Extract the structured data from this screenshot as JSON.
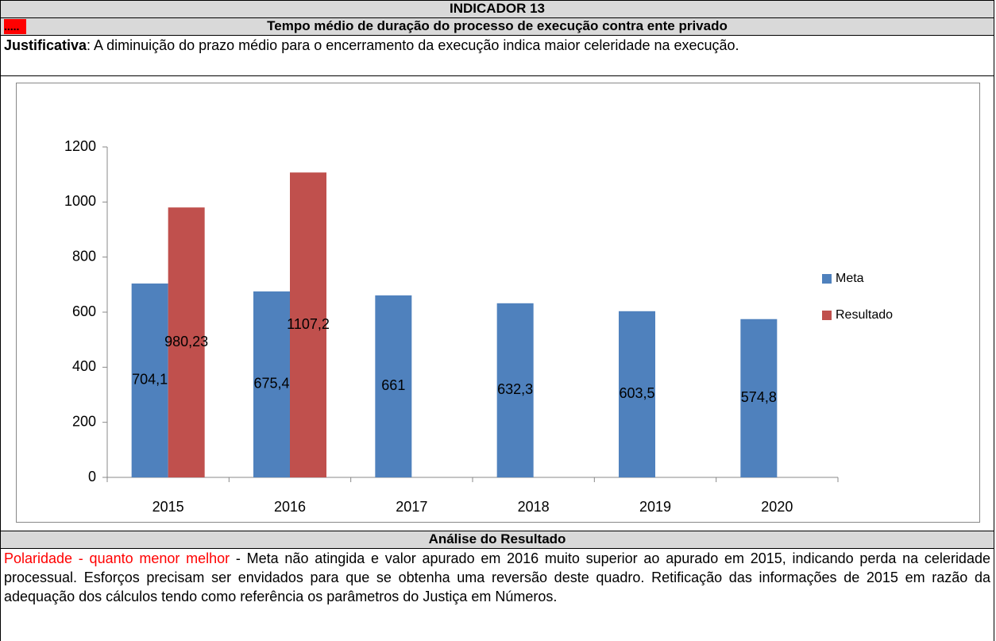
{
  "header": {
    "title": "INDICADOR 13",
    "marker": ".....",
    "subtitle": "Tempo médio de duração do processo de execução contra ente privado"
  },
  "justification": {
    "label": "Justificativa",
    "text": ": A diminuição do prazo médio para o encerramento da execução indica maior celeridade na execução."
  },
  "chart_data": {
    "type": "bar",
    "categories": [
      "2015",
      "2016",
      "2017",
      "2018",
      "2019",
      "2020"
    ],
    "series": [
      {
        "name": "Meta",
        "color": "#4f81bd",
        "values": [
          704.1,
          675.4,
          661,
          632.3,
          603.5,
          574.8
        ],
        "value_labels": [
          "704,1",
          "675,4",
          "661",
          "632,3",
          "603,5",
          "574,8"
        ]
      },
      {
        "name": "Resultado",
        "color": "#c0504d",
        "values": [
          980.23,
          1107.2,
          null,
          null,
          null,
          null
        ],
        "value_labels": [
          "980,23",
          "1107,2",
          null,
          null,
          null,
          null
        ]
      }
    ],
    "ylim": [
      0,
      1200
    ],
    "yticks": [
      0,
      200,
      400,
      600,
      800,
      1000,
      1200
    ],
    "legend": "right"
  },
  "analysis": {
    "title": "Análise do Resultado",
    "polarity": "Polaridade - quanto menor melhor",
    "text": "- Meta não atingida e valor apurado em 2016 muito superior ao apurado em 2015, indicando perda na celeridade processual. Esforços precisam ser envidados para que se obtenha uma reversão deste quadro. Retificação das informações de 2015 em razão da adequação dos cálculos tendo como referência os parâmetros do Justiça em Números."
  }
}
